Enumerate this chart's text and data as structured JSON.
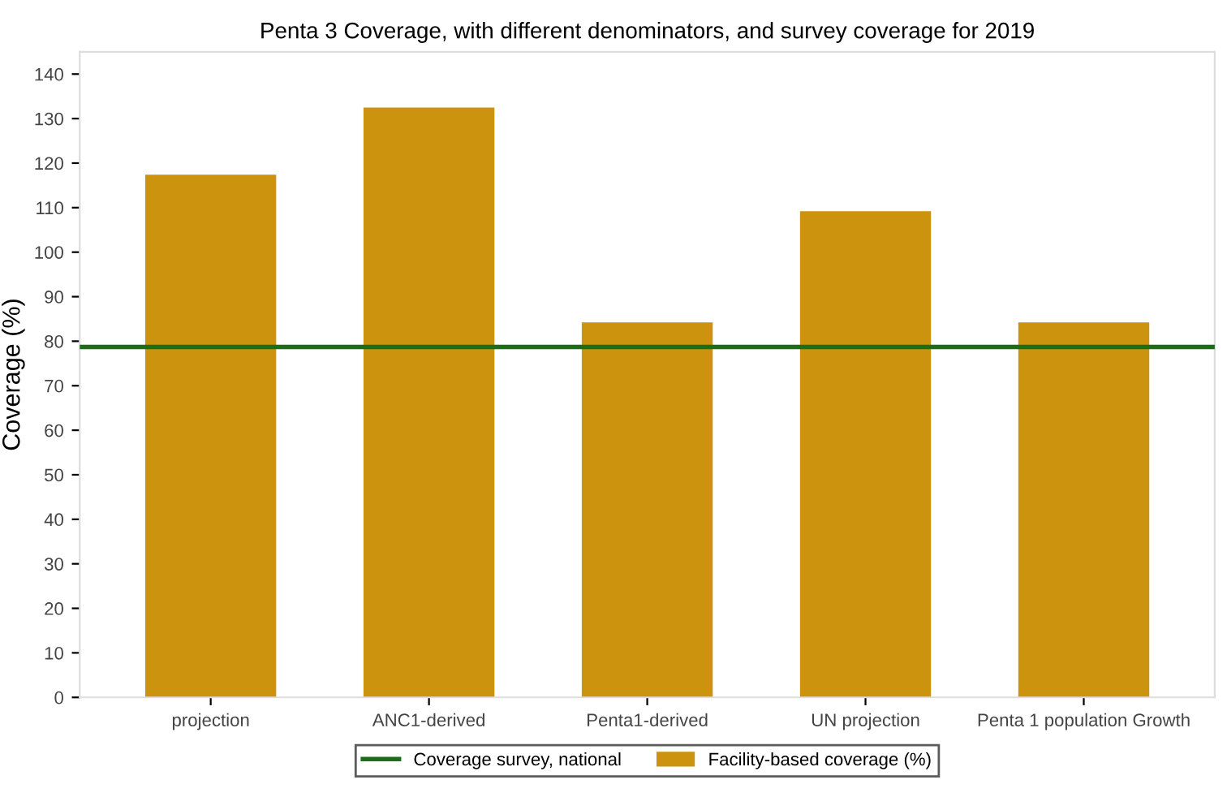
{
  "chart_data": {
    "type": "bar",
    "title": "Penta 3 Coverage, with different denominators, and survey coverage for 2019",
    "ylabel": "Coverage (%)",
    "categories": [
      "projection",
      "ANC1-derived",
      "Penta1-derived",
      "UN projection",
      "Penta 1 population Growth"
    ],
    "series": [
      {
        "name": "Facility-based coverage (%)",
        "color": "#cc930e",
        "values": [
          117.4,
          132.5,
          84.2,
          109.2,
          84.2
        ]
      }
    ],
    "ylim": [
      0,
      145
    ],
    "yticks": [
      0,
      10,
      20,
      30,
      40,
      50,
      60,
      70,
      80,
      90,
      100,
      110,
      120,
      130,
      140
    ],
    "ref_lines": [
      {
        "axis": "y",
        "value": 78.7,
        "label": "Coverage survey, national",
        "color": "#1a6e1a",
        "line_style": "solid"
      }
    ],
    "grid": false,
    "legend": "bottom"
  }
}
